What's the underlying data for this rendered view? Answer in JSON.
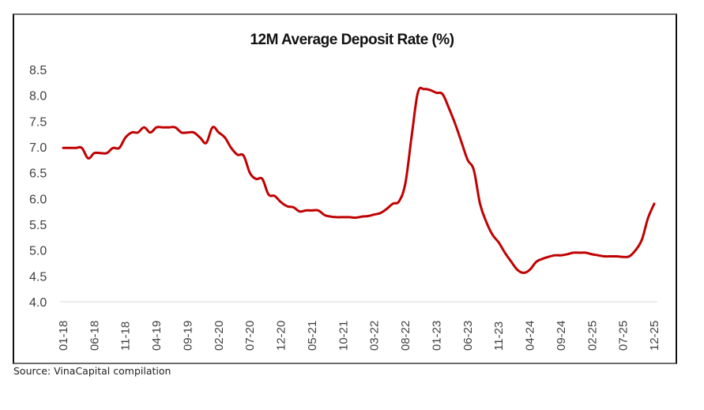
{
  "source_note": "Source: VinaCapital compilation",
  "colors": {
    "line": "#c00000",
    "axis": "#d9d9d9",
    "text": "#404040",
    "frame": "#111111"
  },
  "chart_data": {
    "type": "line",
    "title": "12M Average Deposit Rate (%)",
    "xlabel": "",
    "ylabel": "",
    "ylim": [
      4.0,
      8.5
    ],
    "yticks": [
      "8.5",
      "8.0",
      "7.5",
      "7.0",
      "6.5",
      "6.0",
      "5.5",
      "5.0",
      "4.5",
      "4.0"
    ],
    "ytick_values": [
      8.5,
      8.0,
      7.5,
      7.0,
      6.5,
      6.0,
      5.5,
      5.0,
      4.5,
      4.0
    ],
    "xticks": [
      "01-18",
      "06-18",
      "11-18",
      "04-19",
      "09-19",
      "02-20",
      "07-20",
      "12-20",
      "05-21",
      "10-21",
      "03-22",
      "08-22",
      "01-23",
      "06-23",
      "11-23",
      "04-24",
      "09-24",
      "02-25",
      "07-25",
      "12-25"
    ],
    "xtick_month_index": [
      0,
      5,
      10,
      15,
      20,
      25,
      30,
      35,
      40,
      45,
      50,
      55,
      60,
      65,
      70,
      75,
      80,
      85,
      90,
      95
    ],
    "grid": false,
    "legend": "none",
    "series": [
      {
        "name": "12M Average Deposit Rate",
        "start": "01-18",
        "frequency": "monthly",
        "values": [
          6.98,
          6.98,
          6.98,
          6.98,
          6.78,
          6.88,
          6.88,
          6.88,
          6.98,
          6.98,
          7.18,
          7.28,
          7.28,
          7.38,
          7.28,
          7.38,
          7.38,
          7.38,
          7.38,
          7.28,
          7.28,
          7.28,
          7.18,
          7.08,
          7.38,
          7.28,
          7.18,
          6.98,
          6.85,
          6.83,
          6.5,
          6.38,
          6.38,
          6.08,
          6.05,
          5.93,
          5.85,
          5.83,
          5.75,
          5.77,
          5.77,
          5.77,
          5.68,
          5.65,
          5.64,
          5.64,
          5.64,
          5.63,
          5.65,
          5.66,
          5.69,
          5.72,
          5.8,
          5.9,
          5.95,
          6.3,
          7.2,
          8.05,
          8.12,
          8.1,
          8.05,
          8.02,
          7.75,
          7.45,
          7.1,
          6.75,
          6.55,
          5.9,
          5.55,
          5.3,
          5.15,
          4.95,
          4.78,
          4.62,
          4.56,
          4.62,
          4.77,
          4.83,
          4.87,
          4.9,
          4.9,
          4.92,
          4.95,
          4.95,
          4.95,
          4.92,
          4.9,
          4.88,
          4.88,
          4.88,
          4.87,
          4.88,
          5.0,
          5.2,
          5.62,
          5.9
        ]
      }
    ]
  }
}
